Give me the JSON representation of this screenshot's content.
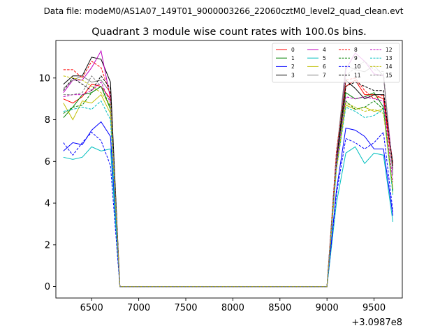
{
  "suptitle": "Data file: modeM0/AS1A07_149T01_9000003266_22060cztM0_level2_quad_clean.evt",
  "chart_data": {
    "type": "line",
    "title": "Quadrant 3 module wise count rates with 100.0s bins.",
    "xlabel": "",
    "ylabel": "",
    "x_offset_label": "+3.0987e8",
    "xlim": [
      6120,
      9800
    ],
    "ylim": [
      -0.55,
      11.8
    ],
    "xticks": [
      6500,
      7000,
      7500,
      8000,
      8500,
      9000,
      9500
    ],
    "yticks": [
      0,
      2,
      4,
      6,
      8,
      10
    ],
    "grid": false,
    "legend_position": "top-right",
    "x": [
      6200,
      6300,
      6400,
      6500,
      6600,
      6700,
      6800,
      6900,
      7000,
      7100,
      7200,
      7300,
      7400,
      7500,
      7600,
      7700,
      7800,
      7900,
      8000,
      8100,
      8200,
      8300,
      8400,
      8500,
      8600,
      8700,
      8800,
      8900,
      9000,
      9100,
      9200,
      9300,
      9400,
      9500,
      9600,
      9700
    ],
    "series": [
      {
        "name": "0",
        "color": "#ff0000",
        "dash": "solid",
        "values": [
          9.0,
          8.8,
          9.1,
          9.7,
          9.6,
          9.0,
          0,
          0,
          0,
          0,
          0,
          0,
          0,
          0,
          0,
          0,
          0,
          0,
          0,
          0,
          0,
          0,
          0,
          0,
          0,
          0,
          0,
          0,
          0,
          5.9,
          9.6,
          9.9,
          9.2,
          9.2,
          9.0,
          5.6
        ]
      },
      {
        "name": "1",
        "color": "#008000",
        "dash": "solid",
        "values": [
          8.1,
          8.6,
          9.2,
          9.3,
          9.6,
          8.5,
          0,
          0,
          0,
          0,
          0,
          0,
          0,
          0,
          0,
          0,
          0,
          0,
          0,
          0,
          0,
          0,
          0,
          0,
          0,
          0,
          0,
          0,
          0,
          6.0,
          9.3,
          9.0,
          9.1,
          9.3,
          8.6,
          4.6
        ]
      },
      {
        "name": "2",
        "color": "#0000ff",
        "dash": "solid",
        "values": [
          6.5,
          6.9,
          6.8,
          7.5,
          7.9,
          7.2,
          0,
          0,
          0,
          0,
          0,
          0,
          0,
          0,
          0,
          0,
          0,
          0,
          0,
          0,
          0,
          0,
          0,
          0,
          0,
          0,
          0,
          0,
          0,
          4.6,
          7.6,
          7.5,
          7.2,
          6.6,
          6.6,
          3.4
        ]
      },
      {
        "name": "3",
        "color": "#000000",
        "dash": "solid",
        "values": [
          9.7,
          10.1,
          10.1,
          11.0,
          10.9,
          9.8,
          0,
          0,
          0,
          0,
          0,
          0,
          0,
          0,
          0,
          0,
          0,
          0,
          0,
          0,
          0,
          0,
          0,
          0,
          0,
          0,
          0,
          0,
          0,
          6.1,
          9.9,
          9.5,
          9.0,
          9.2,
          9.2,
          5.9
        ]
      },
      {
        "name": "4",
        "color": "#bf00bf",
        "dash": "solid",
        "values": [
          9.3,
          9.9,
          9.9,
          10.5,
          11.3,
          9.0,
          0,
          0,
          0,
          0,
          0,
          0,
          0,
          0,
          0,
          0,
          0,
          0,
          0,
          0,
          0,
          0,
          0,
          0,
          0,
          0,
          0,
          0,
          0,
          6.3,
          10.4,
          11.2,
          10.8,
          10.2,
          10.1,
          5.6
        ]
      },
      {
        "name": "5",
        "color": "#00bfbf",
        "dash": "solid",
        "values": [
          6.2,
          6.1,
          6.2,
          6.7,
          6.5,
          6.6,
          0,
          0,
          0,
          0,
          0,
          0,
          0,
          0,
          0,
          0,
          0,
          0,
          0,
          0,
          0,
          0,
          0,
          0,
          0,
          0,
          0,
          0,
          0,
          4.0,
          6.4,
          6.7,
          5.9,
          6.4,
          6.3,
          3.1
        ]
      },
      {
        "name": "6",
        "color": "#bfbf00",
        "dash": "solid",
        "values": [
          8.8,
          8.0,
          8.9,
          8.8,
          9.2,
          8.3,
          0,
          0,
          0,
          0,
          0,
          0,
          0,
          0,
          0,
          0,
          0,
          0,
          0,
          0,
          0,
          0,
          0,
          0,
          0,
          0,
          0,
          0,
          0,
          5.7,
          8.7,
          8.5,
          8.6,
          8.4,
          8.5,
          4.5
        ]
      },
      {
        "name": "7",
        "color": "#808080",
        "dash": "solid",
        "values": [
          9.5,
          9.9,
          10.1,
          9.8,
          9.9,
          9.3,
          0,
          0,
          0,
          0,
          0,
          0,
          0,
          0,
          0,
          0,
          0,
          0,
          0,
          0,
          0,
          0,
          0,
          0,
          0,
          0,
          0,
          0,
          0,
          6.3,
          10.6,
          10.4,
          10.3,
          10.6,
          10.1,
          5.4
        ]
      },
      {
        "name": "8",
        "color": "#ff0000",
        "dash": "dashed",
        "values": [
          10.4,
          10.4,
          10.0,
          10.8,
          10.5,
          9.2,
          0,
          0,
          0,
          0,
          0,
          0,
          0,
          0,
          0,
          0,
          0,
          0,
          0,
          0,
          0,
          0,
          0,
          0,
          0,
          0,
          0,
          0,
          0,
          6.5,
          9.9,
          10.0,
          9.4,
          9.0,
          9.2,
          5.8
        ]
      },
      {
        "name": "9",
        "color": "#008000",
        "dash": "dashed",
        "values": [
          8.3,
          8.6,
          8.7,
          9.3,
          9.6,
          8.6,
          0,
          0,
          0,
          0,
          0,
          0,
          0,
          0,
          0,
          0,
          0,
          0,
          0,
          0,
          0,
          0,
          0,
          0,
          0,
          0,
          0,
          0,
          0,
          5.7,
          8.9,
          8.5,
          8.6,
          8.9,
          8.5,
          4.6
        ]
      },
      {
        "name": "10",
        "color": "#0000ff",
        "dash": "dashed",
        "values": [
          6.9,
          6.3,
          6.9,
          7.4,
          7.0,
          5.8,
          0,
          0,
          0,
          0,
          0,
          0,
          0,
          0,
          0,
          0,
          0,
          0,
          0,
          0,
          0,
          0,
          0,
          0,
          0,
          0,
          0,
          0,
          0,
          4.4,
          7.1,
          6.9,
          6.6,
          6.9,
          7.4,
          3.6
        ]
      },
      {
        "name": "11",
        "color": "#000000",
        "dash": "dashed",
        "values": [
          9.4,
          10.0,
          9.7,
          9.4,
          10.1,
          9.5,
          0,
          0,
          0,
          0,
          0,
          0,
          0,
          0,
          0,
          0,
          0,
          0,
          0,
          0,
          0,
          0,
          0,
          0,
          0,
          0,
          0,
          0,
          0,
          6.0,
          9.6,
          9.8,
          9.6,
          9.4,
          9.4,
          5.7
        ]
      },
      {
        "name": "12",
        "color": "#bf00bf",
        "dash": "dashed",
        "values": [
          9.1,
          9.2,
          9.2,
          9.4,
          9.8,
          8.8,
          0,
          0,
          0,
          0,
          0,
          0,
          0,
          0,
          0,
          0,
          0,
          0,
          0,
          0,
          0,
          0,
          0,
          0,
          0,
          0,
          0,
          0,
          0,
          5.9,
          9.1,
          9.0,
          9.1,
          9.0,
          8.9,
          5.0
        ]
      },
      {
        "name": "13",
        "color": "#00bfbf",
        "dash": "dashed",
        "values": [
          8.4,
          8.5,
          8.6,
          8.5,
          8.9,
          8.0,
          0,
          0,
          0,
          0,
          0,
          0,
          0,
          0,
          0,
          0,
          0,
          0,
          0,
          0,
          0,
          0,
          0,
          0,
          0,
          0,
          0,
          0,
          0,
          5.6,
          8.6,
          8.4,
          8.1,
          8.2,
          8.5,
          4.4
        ]
      },
      {
        "name": "14",
        "color": "#bfbf00",
        "dash": "dashed",
        "values": [
          10.1,
          10.0,
          9.9,
          9.6,
          9.3,
          8.7,
          0,
          0,
          0,
          0,
          0,
          0,
          0,
          0,
          0,
          0,
          0,
          0,
          0,
          0,
          0,
          0,
          0,
          0,
          0,
          0,
          0,
          0,
          0,
          5.6,
          8.8,
          8.6,
          8.4,
          8.5,
          8.3,
          4.7
        ]
      },
      {
        "name": "15",
        "color": "#808080",
        "dash": "dashed",
        "values": [
          9.2,
          9.2,
          9.3,
          10.1,
          9.6,
          8.9,
          0,
          0,
          0,
          0,
          0,
          0,
          0,
          0,
          0,
          0,
          0,
          0,
          0,
          0,
          0,
          0,
          0,
          0,
          0,
          0,
          0,
          0,
          0,
          6.3,
          10.1,
          10.5,
          10.8,
          10.4,
          10.3,
          5.3
        ]
      }
    ]
  }
}
